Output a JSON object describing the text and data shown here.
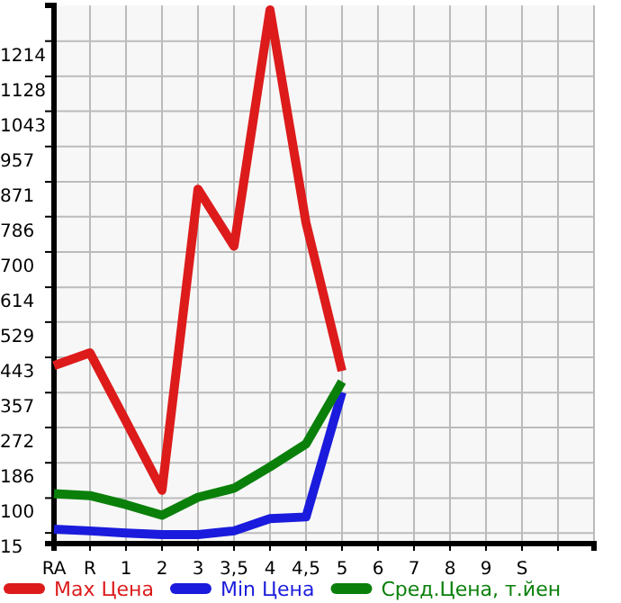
{
  "chart_data": {
    "type": "line",
    "categories": [
      "RA",
      "R",
      "1",
      "2",
      "3",
      "3,5",
      "4",
      "4,5",
      "5",
      "6",
      "7",
      "8",
      "9",
      "S",
      null
    ],
    "ylim": [
      -11,
      1301
    ],
    "yticks": [
      15,
      100,
      186,
      272,
      357,
      443,
      529,
      614,
      700,
      786,
      871,
      957,
      1043,
      1128,
      1214
    ],
    "grid": true,
    "legend": "bottom",
    "line_style": "solid",
    "marker": "none",
    "series": [
      {
        "name": "Max Цена",
        "color": "#dd1b1b",
        "values": [
          423,
          454,
          287,
          119,
          853,
          714,
          1290,
          771,
          410,
          null,
          null,
          null,
          null,
          null,
          null
        ]
      },
      {
        "name": "Min Цена",
        "color": "#1b1bdd",
        "values": [
          24,
          20,
          15,
          11,
          11,
          20,
          50,
          54,
          358,
          null,
          null,
          null,
          null,
          null,
          null
        ]
      },
      {
        "name": "Сред.Цена, т.йен",
        "color": "#0a800a",
        "values": [
          111,
          106,
          84,
          58,
          102,
          124,
          176,
          232,
          384,
          null,
          null,
          null,
          null,
          null,
          null
        ]
      }
    ]
  }
}
